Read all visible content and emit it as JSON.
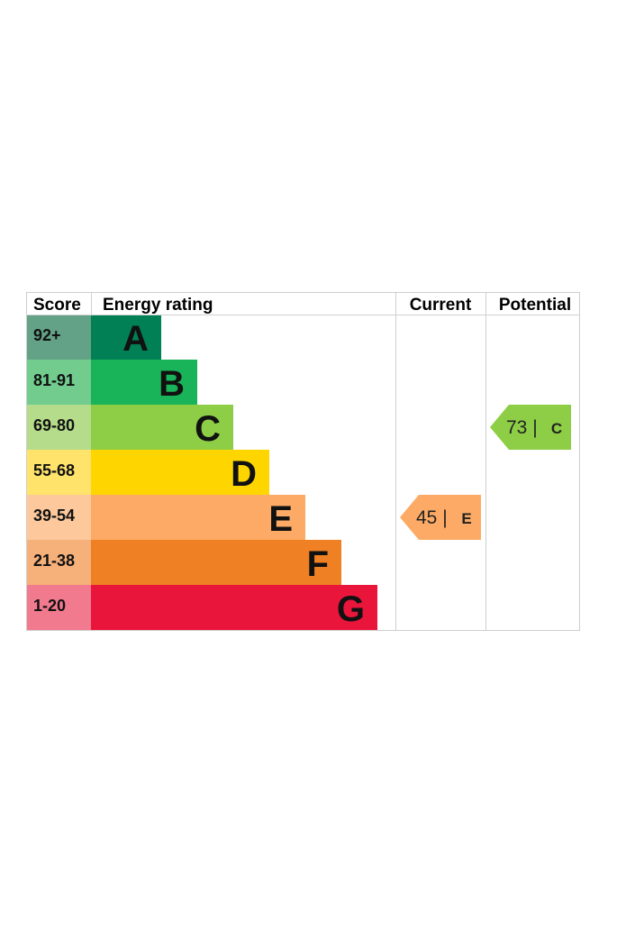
{
  "chart_data": {
    "type": "bar",
    "headers": {
      "score": "Score",
      "energy_rating": "Energy rating",
      "current": "Current",
      "potential": "Potential"
    },
    "bands": [
      {
        "score": "92+",
        "letter": "A",
        "color": "#008054",
        "score_bg": "#63A286"
      },
      {
        "score": "81-91",
        "letter": "B",
        "color": "#19B459",
        "score_bg": "#71CC8E"
      },
      {
        "score": "69-80",
        "letter": "C",
        "color": "#8DCE46",
        "score_bg": "#B4DC8A"
      },
      {
        "score": "55-68",
        "letter": "D",
        "color": "#FFD500",
        "score_bg": "#FFE36A"
      },
      {
        "score": "39-54",
        "letter": "E",
        "color": "#FCAA65",
        "score_bg": "#FDC89B"
      },
      {
        "score": "21-38",
        "letter": "F",
        "color": "#EF8023",
        "score_bg": "#F6B07A"
      },
      {
        "score": "1-20",
        "letter": "G",
        "color": "#E9153B",
        "score_bg": "#F27A8F"
      }
    ],
    "current": {
      "value": 45,
      "letter": "E",
      "separator": "|",
      "color": "#FCAA65"
    },
    "potential": {
      "value": 73,
      "letter": "C",
      "separator": "|",
      "color": "#8DCE46"
    }
  }
}
